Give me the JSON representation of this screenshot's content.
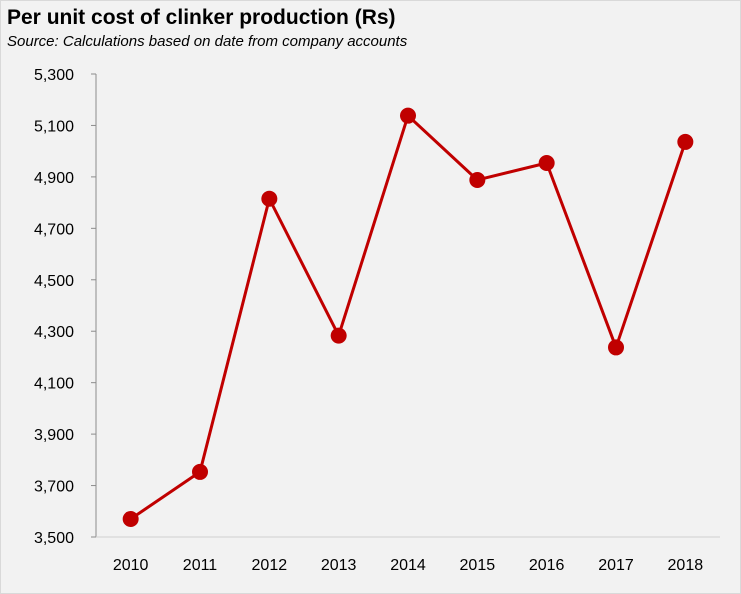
{
  "chart_data": {
    "type": "line",
    "title": "Per unit cost of clinker production (Rs)",
    "subtitle": "Source: Calculations based on date from company accounts",
    "xlabel": "",
    "ylabel": "",
    "categories": [
      "2010",
      "2011",
      "2012",
      "2013",
      "2014",
      "2015",
      "2016",
      "2017",
      "2018"
    ],
    "series": [
      {
        "name": "Per unit cost of clinker production",
        "values": [
          3570,
          3753,
          4815,
          4283,
          5138,
          4888,
          4954,
          4237,
          5036
        ]
      }
    ],
    "ylim": [
      3500,
      5300
    ],
    "yticks": [
      3500,
      3700,
      3900,
      4100,
      4300,
      4500,
      4700,
      4900,
      5100,
      5300
    ],
    "ytick_labels": [
      "3,500",
      "3,700",
      "3,900",
      "4,100",
      "4,300",
      "4,500",
      "4,700",
      "4,900",
      "5,100",
      "5,300"
    ],
    "grid": false,
    "legend": "none",
    "color": "#c00000"
  }
}
